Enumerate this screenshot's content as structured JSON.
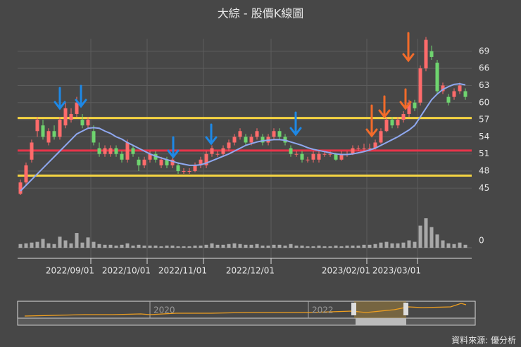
{
  "chart_data": {
    "type": "candlestick",
    "title": "大綜 - 股價K線圖",
    "source": "資料來源: 優分析",
    "categories": [
      null,
      null,
      null,
      null,
      null,
      null,
      null,
      null,
      null,
      null,
      null,
      null,
      "2022/09/01",
      null,
      null,
      null,
      null,
      null,
      null,
      null,
      null,
      null,
      "2022/10/01",
      null,
      null,
      null,
      null,
      null,
      null,
      null,
      null,
      null,
      "2022/11/01",
      null,
      null,
      null,
      null,
      null,
      null,
      null,
      null,
      null,
      null,
      null,
      "2022/12/01",
      null,
      null,
      null,
      null,
      null,
      null,
      null,
      null,
      null,
      null,
      null,
      null,
      null,
      null,
      null,
      null,
      "2023/02/01",
      null,
      null,
      null,
      null,
      null,
      null,
      null,
      null,
      "2023/03/01",
      null,
      null,
      null,
      null,
      null,
      null,
      null,
      null,
      null
    ],
    "open": [
      44,
      46,
      50,
      55,
      56,
      53,
      55,
      54,
      56,
      57,
      58,
      57,
      56,
      55,
      52,
      51,
      51,
      52,
      51,
      50,
      52,
      50,
      49,
      50,
      51,
      49,
      50,
      49,
      49,
      48,
      48,
      48,
      49,
      49,
      51,
      51,
      51,
      52,
      53,
      54,
      54,
      53,
      54,
      54,
      53,
      54,
      55,
      54,
      52,
      51,
      51,
      50,
      50,
      50,
      51,
      51,
      51,
      50,
      51,
      51,
      52,
      52,
      52,
      52,
      53,
      55,
      57,
      56,
      57,
      58,
      60,
      60,
      66,
      69,
      67,
      62,
      61,
      61,
      62,
      62
    ],
    "high": [
      46.5,
      49.5,
      53.5,
      57.5,
      57,
      55.5,
      56,
      57.5,
      60,
      59,
      61,
      58,
      57.5,
      56,
      53,
      52.5,
      52.5,
      52.5,
      51.5,
      53.5,
      52.5,
      50.5,
      50.5,
      51.5,
      51.5,
      50.5,
      50.5,
      50.5,
      49.5,
      48.5,
      48.5,
      49.5,
      50.5,
      51.5,
      52.5,
      51.5,
      52.5,
      53.5,
      54.5,
      55.5,
      54.5,
      54.5,
      55.5,
      54.5,
      54.5,
      55.5,
      55.5,
      54.5,
      52.5,
      51.5,
      51.5,
      50.5,
      51.5,
      51.5,
      51.5,
      51.5,
      51.2,
      51.5,
      51.5,
      52.5,
      52.5,
      52.8,
      52.8,
      53.5,
      55.5,
      57.5,
      57.5,
      57.5,
      58.5,
      60.5,
      60.5,
      66.5,
      71.5,
      70,
      67.5,
      63.5,
      61.5,
      62.5,
      63.5,
      62.5
    ],
    "low": [
      43.8,
      45.5,
      49.5,
      54,
      53.5,
      52.5,
      53.5,
      53.5,
      55.5,
      56.5,
      57.5,
      55.5,
      55.5,
      52.5,
      50.5,
      50.5,
      50.5,
      50.5,
      49.5,
      49.5,
      50.5,
      48,
      48.5,
      49.5,
      49.5,
      48.5,
      48.5,
      48.5,
      47.5,
      47.5,
      47.5,
      47.8,
      48.5,
      48.5,
      50.5,
      50.5,
      50.5,
      51.5,
      52.5,
      53.5,
      52.5,
      52.5,
      53.5,
      52.5,
      52.5,
      53.5,
      53.5,
      52.5,
      50.5,
      50.5,
      49.5,
      49.5,
      49.5,
      49.5,
      50.5,
      50.5,
      49.8,
      49.8,
      50.5,
      50.8,
      51.5,
      51.5,
      51.5,
      51.8,
      52.8,
      54.8,
      55.5,
      55.5,
      56.5,
      57.5,
      58.5,
      59.5,
      65.5,
      67.5,
      61.5,
      61.5,
      59.5,
      60.5,
      61.5,
      60.5
    ],
    "close": [
      46,
      49,
      53,
      57,
      54,
      55,
      54,
      57,
      59,
      58,
      60,
      56,
      57,
      53,
      51,
      52,
      52,
      51,
      50,
      53,
      51,
      49,
      50,
      51,
      50,
      50,
      49,
      50,
      48,
      48,
      48,
      49,
      50,
      51,
      52,
      51,
      52,
      53,
      54,
      55,
      53,
      54,
      55,
      53,
      54,
      55,
      54,
      53,
      51,
      51,
      50,
      50,
      51,
      51,
      51,
      51,
      50,
      51,
      51,
      52,
      52,
      52,
      52,
      53,
      55,
      57,
      56,
      57,
      58,
      60,
      59,
      66,
      71,
      68,
      62,
      63,
      60,
      62,
      63,
      61
    ],
    "up_color": "#ff6b6b",
    "down_color": "#6fd46f",
    "ma": {
      "color": "#8fa8f0",
      "values": [
        44.5,
        45.5,
        46.5,
        47.5,
        48.5,
        49.5,
        50.5,
        51.5,
        52.5,
        53.5,
        54.5,
        55,
        55.5,
        55.6,
        55.5,
        55,
        54.6,
        54,
        53.6,
        53,
        52.5,
        52,
        51.5,
        51,
        50.6,
        50.3,
        50,
        49.7,
        49.4,
        49.2,
        49,
        49,
        49.1,
        49.4,
        49.8,
        50.2,
        50.6,
        51,
        51.5,
        52,
        52.5,
        52.8,
        53.1,
        53.3,
        53.4,
        53.5,
        53.5,
        53.4,
        53.1,
        52.8,
        52.5,
        52.1,
        51.8,
        51.6,
        51.4,
        51.2,
        51,
        50.9,
        50.9,
        51,
        51.2,
        51.4,
        51.7,
        52,
        52.5,
        53,
        53.5,
        54,
        54.6,
        55.2,
        56,
        57.5,
        59,
        60.5,
        61.5,
        62.3,
        62.8,
        63.2,
        63.3,
        63.1
      ]
    },
    "levels": [
      {
        "value": 57.3,
        "color": "#f5d442"
      },
      {
        "value": 51.6,
        "color": "#e8344a"
      },
      {
        "value": 47.2,
        "color": "#f5d442"
      }
    ],
    "ylim": [
      42.2,
      71.2
    ],
    "yticks": [
      45,
      48,
      51,
      54,
      57,
      60,
      63,
      66,
      69
    ],
    "volume": {
      "color": "#a8a8a8",
      "values": [
        5,
        6,
        7,
        8,
        12,
        6,
        5,
        15,
        10,
        6,
        20,
        7,
        14,
        8,
        5,
        4,
        4,
        3,
        4,
        6,
        3,
        4,
        3,
        3,
        3,
        2,
        3,
        3,
        2,
        2,
        2,
        3,
        3,
        4,
        6,
        4,
        4,
        5,
        6,
        5,
        4,
        4,
        5,
        3,
        3,
        4,
        4,
        3,
        5,
        3,
        3,
        2,
        2,
        3,
        2,
        2,
        3,
        2,
        3,
        3,
        3,
        4,
        4,
        5,
        7,
        8,
        6,
        6,
        7,
        10,
        8,
        30,
        40,
        28,
        18,
        10,
        6,
        5,
        7,
        4
      ],
      "ylim": [
        0,
        42
      ],
      "yticks": [
        0
      ]
    },
    "navigator_labels": [
      "2020",
      "2022"
    ]
  }
}
